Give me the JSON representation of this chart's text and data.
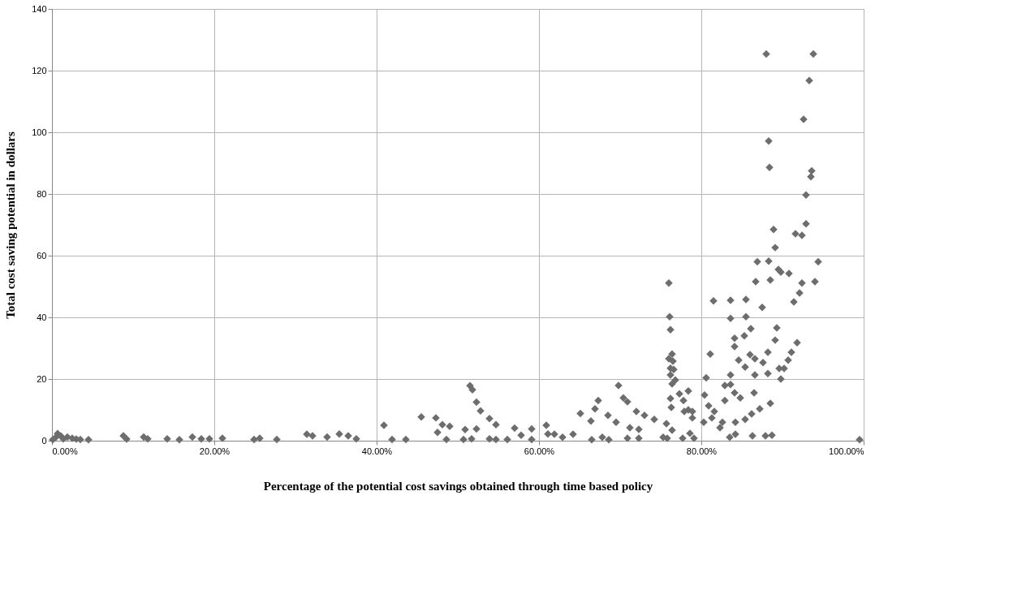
{
  "chart_data": {
    "type": "scatter",
    "xlabel": "Percentage of the potential cost savings obtained  through time based policy",
    "ylabel": "Total cost saving potential in dollars",
    "marker": "diamond",
    "grid": true,
    "xlim": [
      0,
      100
    ],
    "xticks": [
      {
        "value": 0,
        "label": "0.00%"
      },
      {
        "value": 20,
        "label": "20.00%"
      },
      {
        "value": 40,
        "label": "40.00%"
      },
      {
        "value": 60,
        "label": "60.00%"
      },
      {
        "value": 80,
        "label": "80.00%"
      },
      {
        "value": 100,
        "label": "100.00%"
      }
    ],
    "ylim": [
      0,
      140
    ],
    "yticks": [
      0,
      20,
      40,
      60,
      80,
      100,
      120,
      140
    ],
    "series": [
      {
        "color": "#6d6d6d",
        "x": [
          0.1,
          0.5,
          0.7,
          1.1,
          1.4,
          1.9,
          2.5,
          3.0,
          3.5,
          4.5,
          8.8,
          9.2,
          11.3,
          11.8,
          14.2,
          15.7,
          17.3,
          18.4,
          19.4,
          21.0,
          24.9,
          25.6,
          27.7,
          31.4,
          32.1,
          33.9,
          35.4,
          36.5,
          37.5,
          40.9,
          41.9,
          43.6,
          45.5,
          47.3,
          47.5,
          48.1,
          49.0,
          48.6,
          50.9,
          50.7,
          51.7,
          51.5,
          51.8,
          52.3,
          52.8,
          53.9,
          54.7,
          52.3,
          53.9,
          54.7,
          56.1,
          57.0,
          57.8,
          59.1,
          59.1,
          60.9,
          61.1,
          61.9,
          62.9,
          64.2,
          65.1,
          66.4,
          66.9,
          67.3,
          68.5,
          69.5,
          69.8,
          70.4,
          70.9,
          72.0,
          73.0,
          74.2,
          75.7,
          66.5,
          67.8,
          68.6,
          70.9,
          72.3,
          71.2,
          72.3,
          75.3,
          75.8,
          76.4,
          77.7,
          76.0,
          76.1,
          76.2,
          76.0,
          76.4,
          76.5,
          76.6,
          76.2,
          76.2,
          76.4,
          76.8,
          76.2,
          76.3,
          77.3,
          77.8,
          77.9,
          78.4,
          78.9,
          79.1,
          78.4,
          78.9,
          78.6,
          80.6,
          80.4,
          80.9,
          81.6,
          80.3,
          81.3,
          82.6,
          82.3,
          81.1,
          82.9,
          83.6,
          84.1,
          84.8,
          82.9,
          83.6,
          84.1,
          84.1,
          83.6,
          83.6,
          81.5,
          85.5,
          85.5,
          86.1,
          85.3,
          84.6,
          85.4,
          86.0,
          86.6,
          86.6,
          87.5,
          89.3,
          89.1,
          88.2,
          87.6,
          88.2,
          89.6,
          89.8,
          90.2,
          90.7,
          91.1,
          91.8,
          91.4,
          92.1,
          92.4,
          86.5,
          87.2,
          86.2,
          85.4,
          84.2,
          88.5,
          86.3,
          87.9,
          88.7,
          83.5,
          84.2,
          88.0,
          93.8,
          93.3,
          92.6,
          88.3,
          88.4,
          93.6,
          93.5,
          92.9,
          92.9,
          88.9,
          91.6,
          92.4,
          89.1,
          86.9,
          88.3,
          94.4,
          89.5,
          89.8,
          90.8,
          86.7,
          88.5,
          94.0,
          99.5
        ],
        "values": [
          0.3,
          1.2,
          2.3,
          1.5,
          0.6,
          1.2,
          0.8,
          0.5,
          0.4,
          0.3,
          1.6,
          0.5,
          1.2,
          0.6,
          0.6,
          0.3,
          1.2,
          0.6,
          0.6,
          0.8,
          0.4,
          0.8,
          0.4,
          2.1,
          1.6,
          1.2,
          2.2,
          1.6,
          0.6,
          5.0,
          0.4,
          0.4,
          7.7,
          7.4,
          2.7,
          5.2,
          4.7,
          0.4,
          3.6,
          0.4,
          0.6,
          17.8,
          16.5,
          12.5,
          9.7,
          7.2,
          5.2,
          3.8,
          0.6,
          0.4,
          0.4,
          4.1,
          1.8,
          3.8,
          0.4,
          5.0,
          2.2,
          2.1,
          1.1,
          2.1,
          8.8,
          6.4,
          10.3,
          13.0,
          8.2,
          6.0,
          17.9,
          13.9,
          12.6,
          9.5,
          8.2,
          6.9,
          5.5,
          0.3,
          1.1,
          0.3,
          0.8,
          0.8,
          4.2,
          3.7,
          1.1,
          0.8,
          3.4,
          0.8,
          51.1,
          40.2,
          36.0,
          26.6,
          28.1,
          25.8,
          23.1,
          23.5,
          21.3,
          18.4,
          19.7,
          13.7,
          10.8,
          15.2,
          13.0,
          9.5,
          16.1,
          9.5,
          0.8,
          10.0,
          7.4,
          2.4,
          20.4,
          14.8,
          11.3,
          9.5,
          6.0,
          7.4,
          6.0,
          4.2,
          28.1,
          17.9,
          18.2,
          15.5,
          13.9,
          13.0,
          21.3,
          33.2,
          30.5,
          39.7,
          45.5,
          45.3,
          45.8,
          40.2,
          36.3,
          34.0,
          26.1,
          23.9,
          27.9,
          26.6,
          21.3,
          43.2,
          36.6,
          32.6,
          28.7,
          25.3,
          21.8,
          23.4,
          20.0,
          23.4,
          26.1,
          28.7,
          31.8,
          45.0,
          47.9,
          51.1,
          15.5,
          10.3,
          8.7,
          6.9,
          6.0,
          12.1,
          1.6,
          1.6,
          1.8,
          1.1,
          2.1,
          125.4,
          125.4,
          116.8,
          104.2,
          97.2,
          88.6,
          87.5,
          85.6,
          79.7,
          70.3,
          68.5,
          67.1,
          66.6,
          62.6,
          58.0,
          58.2,
          58.0,
          55.5,
          54.7,
          54.2,
          51.6,
          52.1,
          51.6,
          0.3
        ]
      }
    ]
  }
}
